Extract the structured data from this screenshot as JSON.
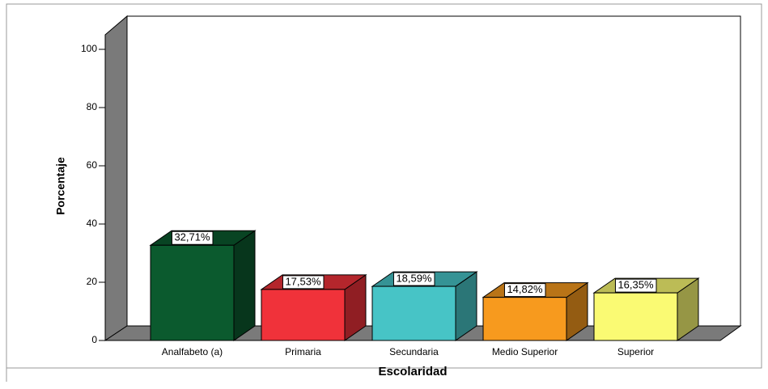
{
  "chart_data": {
    "type": "bar3d",
    "x_label": "Escolaridad",
    "y_label": "Porcentaje",
    "categories": [
      "Analfabeto (a)",
      "Primaria",
      "Secundaria",
      "Medio Superior",
      "Superior"
    ],
    "values": [
      32.71,
      17.53,
      18.59,
      14.82,
      16.35
    ],
    "value_labels": [
      "32,71%",
      "17,53%",
      "18,59%",
      "14,82%",
      "16,35%"
    ],
    "colors": [
      "#0b5a2e",
      "#f0323a",
      "#47c4c6",
      "#f79a1e",
      "#fafa73"
    ],
    "ylim": [
      0,
      100
    ],
    "yticks": [
      0,
      20,
      40,
      60,
      80,
      100
    ]
  }
}
